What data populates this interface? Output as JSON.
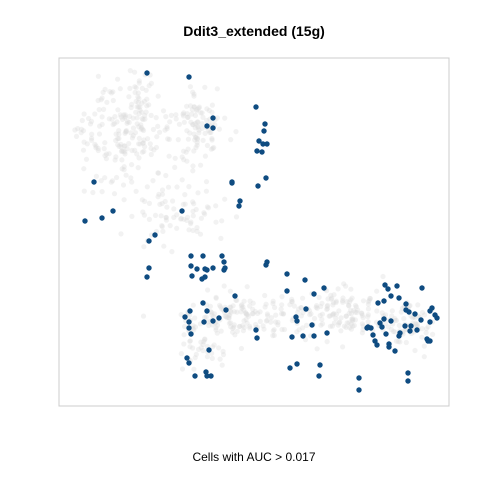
{
  "chart_data": {
    "type": "scatter",
    "title": "Ddit3_extended (15g)",
    "xlabel": "Cells with AUC > 0.017",
    "ylabel": "",
    "grid": false,
    "legend": "none",
    "axes": false,
    "xlim": [
      0,
      390
    ],
    "ylim": [
      0,
      348
    ],
    "colors": {
      "background_cell": "#d9d9d9",
      "highlighted_cell": "#0f4c81",
      "frame": "#cccccc"
    },
    "series": [
      {
        "role": "cells-above-threshold",
        "points": [
          [
            88,
            333
          ],
          [
            130,
            329
          ],
          [
            154,
            288
          ],
          [
            197,
            299
          ],
          [
            148,
            280
          ],
          [
            154,
            278
          ],
          [
            206,
            282
          ],
          [
            205,
            275
          ],
          [
            200,
            265
          ],
          [
            204,
            262
          ],
          [
            198,
            255
          ],
          [
            203,
            254
          ],
          [
            208,
            262
          ],
          [
            207,
            228
          ],
          [
            199,
            220
          ],
          [
            173,
            223
          ],
          [
            181,
            205
          ],
          [
            180,
            200
          ],
          [
            123,
            195
          ],
          [
            35,
            224
          ],
          [
            54,
            195
          ],
          [
            26,
            185
          ],
          [
            43,
            188
          ],
          [
            96,
            171
          ],
          [
            90,
            165
          ],
          [
            90,
            138
          ],
          [
            88,
            129
          ],
          [
            148,
            136
          ],
          [
            133,
            130
          ],
          [
            143,
            127
          ],
          [
            146,
            129
          ],
          [
            144,
            103
          ],
          [
            126,
            89
          ],
          [
            148,
            95
          ],
          [
            167,
            96
          ],
          [
            130,
            78
          ],
          [
            132,
            72
          ],
          [
            154,
            85
          ],
          [
            160,
            88
          ],
          [
            197,
            76
          ],
          [
            198,
            68
          ],
          [
            247,
            97
          ],
          [
            237,
            89
          ],
          [
            268,
            73
          ],
          [
            253,
            81
          ],
          [
            233,
            69
          ],
          [
            255,
            70
          ],
          [
            231,
            38
          ],
          [
            238,
            42
          ],
          [
            300,
            16
          ],
          [
            300,
            28
          ],
          [
            326,
            121
          ],
          [
            338,
            120
          ],
          [
            329,
            117
          ],
          [
            332,
            110
          ],
          [
            325,
            105
          ],
          [
            340,
            108
          ],
          [
            347,
            96
          ],
          [
            347,
            102
          ],
          [
            350,
            94
          ],
          [
            352,
            80
          ],
          [
            358,
            76
          ],
          [
            368,
            67
          ],
          [
            371,
            65
          ],
          [
            371,
            84
          ],
          [
            378,
            88
          ],
          [
            376,
            91
          ],
          [
            373,
            98
          ],
          [
            362,
            86
          ],
          [
            371,
            95
          ],
          [
            356,
            92
          ],
          [
            319,
            103
          ],
          [
            312,
            78
          ],
          [
            309,
            79
          ],
          [
            323,
            79
          ],
          [
            314,
            71
          ],
          [
            321,
            83
          ],
          [
            325,
            87
          ],
          [
            327,
            72
          ],
          [
            341,
            73
          ],
          [
            346,
            80
          ],
          [
            340,
            70
          ],
          [
            351,
            75
          ],
          [
            369,
            65
          ],
          [
            308,
            78
          ],
          [
            316,
            65
          ],
          [
            318,
            61
          ],
          [
            332,
            85
          ],
          [
            363,
            118
          ],
          [
            336,
            55
          ],
          [
            330,
            62
          ],
          [
            330,
            59
          ],
          [
            349,
            33
          ],
          [
            349,
            25
          ],
          [
            265,
            118
          ],
          [
            255,
            112
          ],
          [
            228,
            132
          ],
          [
            246,
            126
          ],
          [
            238,
            85
          ],
          [
            244,
            70
          ],
          [
            261,
            41
          ],
          [
            260,
            30
          ],
          [
            228,
            115
          ],
          [
            207,
            141
          ],
          [
            208,
            144
          ],
          [
            163,
            150
          ],
          [
            165,
            144
          ],
          [
            165,
            136
          ],
          [
            154,
            138
          ],
          [
            144,
            150
          ],
          [
            132,
            150
          ],
          [
            132,
            140
          ],
          [
            138,
            137
          ],
          [
            131,
            95
          ],
          [
            130,
            84
          ],
          [
            145,
            84
          ],
          [
            146,
            137
          ],
          [
            173,
            224
          ],
          [
            176,
            110
          ],
          [
            166,
            138
          ],
          [
            152,
            30
          ],
          [
            130,
            43
          ],
          [
            128,
            48
          ],
          [
            147,
            34
          ],
          [
            148,
            30
          ],
          [
            136,
            30
          ],
          [
            150,
            56
          ]
        ]
      }
    ]
  }
}
